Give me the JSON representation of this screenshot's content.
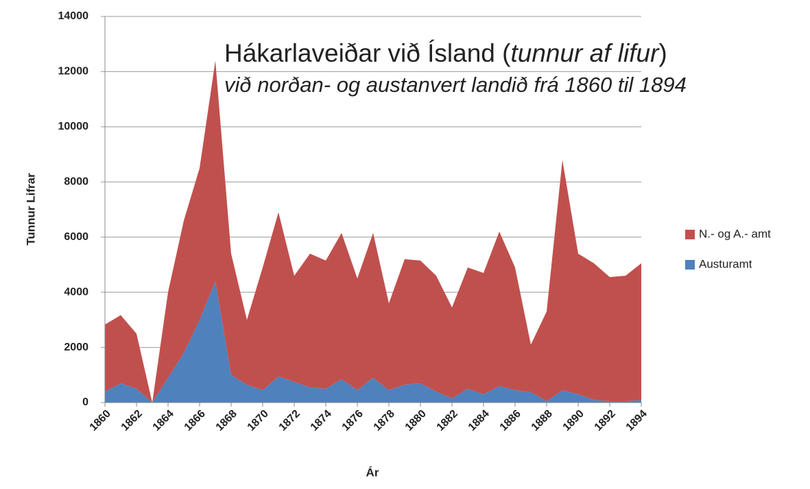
{
  "chart_data": {
    "type": "stacked_area",
    "title": [
      "Hákarlaveiðar við Ísland (",
      "tunnur af lifur",
      ")"
    ],
    "subtitle": "við norðan- og austanvert landið frá 1860 til 1894",
    "xlabel": "Ár",
    "ylabel": "Tunnur Lifrar",
    "x": [
      1860,
      1861,
      1862,
      1863,
      1864,
      1865,
      1866,
      1867,
      1868,
      1869,
      1870,
      1871,
      1872,
      1873,
      1874,
      1875,
      1876,
      1877,
      1878,
      1879,
      1880,
      1881,
      1882,
      1883,
      1884,
      1885,
      1886,
      1887,
      1888,
      1889,
      1890,
      1891,
      1892,
      1893,
      1894
    ],
    "series": [
      {
        "name": "Austuramt",
        "color": "#4f81bd",
        "values": [
          400,
          700,
          500,
          0,
          900,
          1800,
          3000,
          4400,
          1000,
          650,
          450,
          950,
          750,
          550,
          500,
          850,
          450,
          900,
          450,
          650,
          700,
          400,
          150,
          500,
          300,
          600,
          450,
          380,
          50,
          450,
          300,
          100,
          50,
          50,
          100
        ]
      },
      {
        "name": "N.- og A.- amt",
        "color": "#c0504d",
        "values": [
          2430,
          2470,
          2000,
          0,
          3100,
          4800,
          5500,
          8000,
          4400,
          2350,
          4450,
          5950,
          3850,
          4850,
          4650,
          5300,
          4050,
          5250,
          3150,
          4550,
          4450,
          4200,
          3300,
          4400,
          4400,
          5600,
          4450,
          1720,
          3250,
          8350,
          5100,
          4950,
          4500,
          4550,
          4950
        ]
      }
    ],
    "xlim": [
      1860,
      1894
    ],
    "xticks": [
      1860,
      1862,
      1864,
      1866,
      1868,
      1870,
      1872,
      1874,
      1876,
      1878,
      1880,
      1882,
      1884,
      1886,
      1888,
      1890,
      1892,
      1894
    ],
    "ylim": [
      0,
      14000
    ],
    "yticks": [
      0,
      2000,
      4000,
      6000,
      8000,
      10000,
      12000,
      14000
    ],
    "grid": true,
    "legend": "right"
  }
}
